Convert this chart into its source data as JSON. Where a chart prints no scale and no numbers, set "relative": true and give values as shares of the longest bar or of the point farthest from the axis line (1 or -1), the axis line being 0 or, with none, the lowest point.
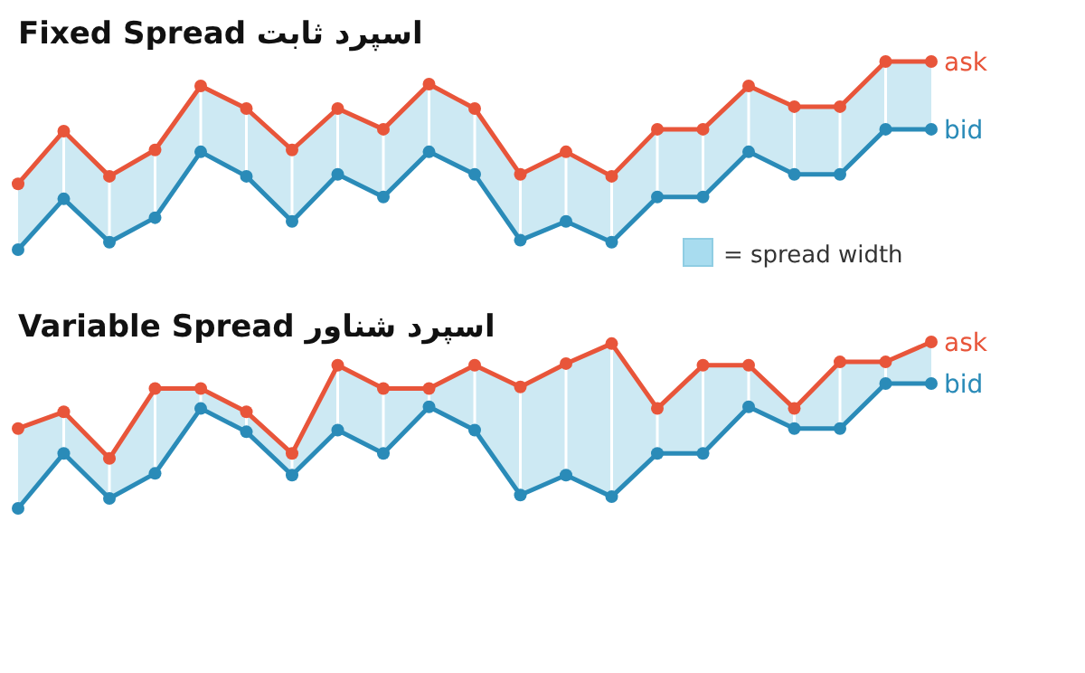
{
  "chart_data": [
    {
      "type": "line",
      "title": "Fixed Spread  اسپرد ثابت",
      "relative": true,
      "marker": "circle",
      "categories": [
        null,
        null,
        null,
        null,
        null,
        null,
        null,
        null,
        null,
        null,
        null,
        null,
        null,
        null,
        null,
        null,
        null,
        null,
        null,
        null,
        null
      ],
      "annotations": [
        "= spread width"
      ],
      "series": [
        {
          "name": "ask",
          "color": "#e8553a",
          "values": [
            0.35,
            0.63,
            0.39,
            0.53,
            0.87,
            0.75,
            0.53,
            0.75,
            0.64,
            0.88,
            0.75,
            0.4,
            0.52,
            0.39,
            0.64,
            0.64,
            0.87,
            0.76,
            0.76,
            1,
            1
          ],
          "upper": [
            0.35,
            0.63,
            0.39,
            0.53,
            0.87,
            0.75,
            0.53,
            0.75,
            0.64,
            0.88,
            0.75,
            0.4,
            0.52,
            0.39,
            0.64,
            0.64,
            0.87,
            0.76,
            0.76,
            1,
            1
          ],
          "lower": [
            0,
            0.27,
            0.04,
            0.17,
            0.52,
            0.39,
            0.15,
            0.4,
            0.28,
            0.52,
            0.4,
            0.05,
            0.15,
            0.04,
            0.28,
            0.28,
            0.52,
            0.4,
            0.4,
            0.64,
            0.64
          ]
        },
        {
          "name": "bid",
          "color": "#2a8bb8",
          "values": [
            0,
            0.27,
            0.04,
            0.17,
            0.52,
            0.39,
            0.15,
            0.4,
            0.28,
            0.52,
            0.4,
            0.05,
            0.15,
            0.04,
            0.28,
            0.28,
            0.52,
            0.4,
            0.4,
            0.64,
            0.64
          ]
        }
      ]
    },
    {
      "type": "line",
      "title": "Variable Spread  اسپرد شناور",
      "relative": true,
      "marker": "circle",
      "categories": [
        null,
        null,
        null,
        null,
        null,
        null,
        null,
        null,
        null,
        null,
        null,
        null,
        null,
        null,
        null,
        null,
        null,
        null,
        null,
        null,
        null
      ],
      "series": [
        {
          "name": "ask",
          "color": "#e8553a",
          "values": [
            0.48,
            0.58,
            0.3,
            0.72,
            0.72,
            0.58,
            0.33,
            0.86,
            0.72,
            0.72,
            0.86,
            0.73,
            0.87,
            0.99,
            0.6,
            0.86,
            0.86,
            0.6,
            0.88,
            0.88,
            1
          ],
          "upper": [
            0.48,
            0.58,
            0.3,
            0.72,
            0.72,
            0.58,
            0.33,
            0.86,
            0.72,
            0.72,
            0.86,
            0.73,
            0.87,
            0.99,
            0.6,
            0.86,
            0.86,
            0.6,
            0.88,
            0.88,
            1
          ],
          "lower": [
            0,
            0.33,
            0.06,
            0.21,
            0.6,
            0.46,
            0.2,
            0.47,
            0.33,
            0.61,
            0.47,
            0.08,
            0.2,
            0.07,
            0.33,
            0.33,
            0.61,
            0.48,
            0.48,
            0.75,
            0.75
          ]
        },
        {
          "name": "bid",
          "color": "#2a8bb8",
          "values": [
            0,
            0.33,
            0.06,
            0.21,
            0.6,
            0.46,
            0.2,
            0.47,
            0.33,
            0.61,
            0.47,
            0.08,
            0.2,
            0.07,
            0.33,
            0.33,
            0.61,
            0.48,
            0.48,
            0.75,
            0.75
          ]
        }
      ]
    }
  ]
}
